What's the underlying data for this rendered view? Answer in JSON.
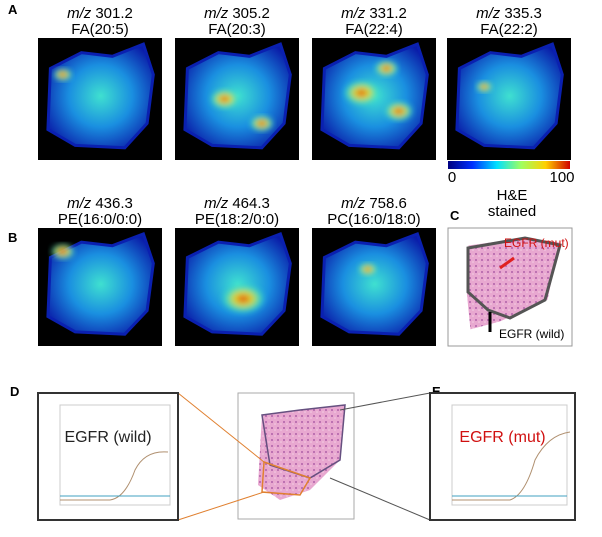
{
  "panels": {
    "A": "A",
    "B": "B",
    "C": "C",
    "D": "D",
    "E": "E"
  },
  "row_a": [
    {
      "mz": "m/z",
      "value": "301.2",
      "lipid": "FA(20:5)"
    },
    {
      "mz": "m/z",
      "value": "305.2",
      "lipid": "FA(20:3)"
    },
    {
      "mz": "m/z",
      "value": "331.2",
      "lipid": "FA(22:4)"
    },
    {
      "mz": "m/z",
      "value": "335.3",
      "lipid": "FA(22:2)"
    }
  ],
  "colorbar": {
    "min": "0",
    "max": "100"
  },
  "row_b": [
    {
      "mz": "m/z",
      "value": "436.3",
      "lipid": "PE(16:0/0:0)"
    },
    {
      "mz": "m/z",
      "value": "464.3",
      "lipid": "PE(18:2/0:0)"
    },
    {
      "mz": "m/z",
      "value": "758.6",
      "lipid": "PC(16:0/18:0)"
    }
  ],
  "he": {
    "title_line1": "H&E",
    "title_line2": "stained",
    "mut": "EGFR (mut)",
    "wild": "EGFR (wild)"
  },
  "qpcr_d": {
    "label": "EGFR (wild)"
  },
  "qpcr_e": {
    "label": "EGFR (mut)"
  }
}
